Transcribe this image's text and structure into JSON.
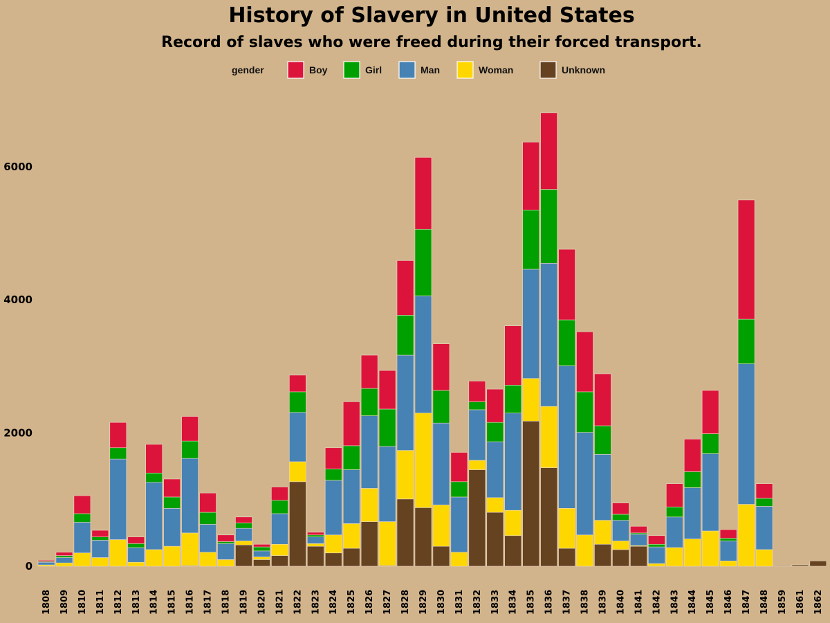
{
  "chart_data": {
    "type": "bar",
    "stacked": true,
    "title": "History of Slavery in United States",
    "subtitle": "Record of slaves who were freed during their forced transport.",
    "legend_title": "gender",
    "legend_placement": "top",
    "grid": false,
    "ylim": [
      0,
      7000
    ],
    "yticks": [
      0,
      2000,
      4000,
      6000
    ],
    "categories": [
      "1808",
      "1809",
      "1810",
      "1811",
      "1812",
      "1813",
      "1814",
      "1815",
      "1816",
      "1817",
      "1818",
      "1819",
      "1820",
      "1821",
      "1822",
      "1823",
      "1824",
      "1825",
      "1826",
      "1827",
      "1828",
      "1829",
      "1830",
      "1831",
      "1832",
      "1833",
      "1834",
      "1835",
      "1836",
      "1837",
      "1838",
      "1839",
      "1840",
      "1841",
      "1842",
      "1843",
      "1844",
      "1845",
      "1846",
      "1847",
      "1848",
      "1859",
      "1861",
      "1862"
    ],
    "series": [
      {
        "name": "Unknown",
        "color": "#654321",
        "values": [
          0,
          0,
          0,
          0,
          0,
          0,
          0,
          0,
          10,
          0,
          0,
          320,
          100,
          160,
          1270,
          300,
          200,
          270,
          670,
          10,
          1010,
          880,
          300,
          0,
          1450,
          810,
          460,
          2180,
          1480,
          270,
          0,
          330,
          250,
          300,
          0,
          0,
          0,
          0,
          0,
          0,
          0,
          10,
          20,
          80
        ]
      },
      {
        "name": "Woman",
        "color": "#ffd700",
        "values": [
          20,
          50,
          200,
          130,
          400,
          60,
          250,
          300,
          490,
          210,
          100,
          60,
          40,
          170,
          300,
          40,
          270,
          370,
          500,
          660,
          730,
          1420,
          620,
          210,
          140,
          220,
          380,
          640,
          920,
          600,
          470,
          360,
          130,
          10,
          40,
          280,
          410,
          530,
          80,
          930,
          250,
          0,
          0,
          0
        ]
      },
      {
        "name": "Man",
        "color": "#4682b4",
        "values": [
          40,
          80,
          460,
          260,
          1210,
          220,
          1010,
          570,
          1120,
          420,
          240,
          190,
          90,
          460,
          740,
          100,
          820,
          810,
          1090,
          1130,
          1430,
          1760,
          1230,
          830,
          760,
          840,
          1460,
          1640,
          2150,
          2140,
          1540,
          990,
          310,
          170,
          250,
          460,
          770,
          1160,
          300,
          2110,
          650,
          0,
          0,
          0
        ]
      },
      {
        "name": "Girl",
        "color": "#00a000",
        "values": [
          10,
          30,
          130,
          50,
          170,
          60,
          140,
          170,
          260,
          180,
          30,
          80,
          60,
          200,
          310,
          30,
          170,
          360,
          410,
          560,
          600,
          1000,
          490,
          230,
          120,
          290,
          420,
          890,
          1110,
          690,
          610,
          430,
          90,
          20,
          40,
          150,
          240,
          300,
          40,
          670,
          120,
          0,
          0,
          0
        ]
      },
      {
        "name": "Boy",
        "color": "#dc143c",
        "values": [
          20,
          50,
          270,
          100,
          380,
          100,
          430,
          270,
          370,
          290,
          100,
          90,
          40,
          200,
          250,
          40,
          320,
          660,
          500,
          580,
          820,
          1080,
          700,
          440,
          310,
          500,
          890,
          1020,
          1150,
          1060,
          900,
          780,
          170,
          100,
          130,
          350,
          490,
          650,
          130,
          1790,
          220,
          0,
          0,
          0
        ]
      }
    ]
  }
}
